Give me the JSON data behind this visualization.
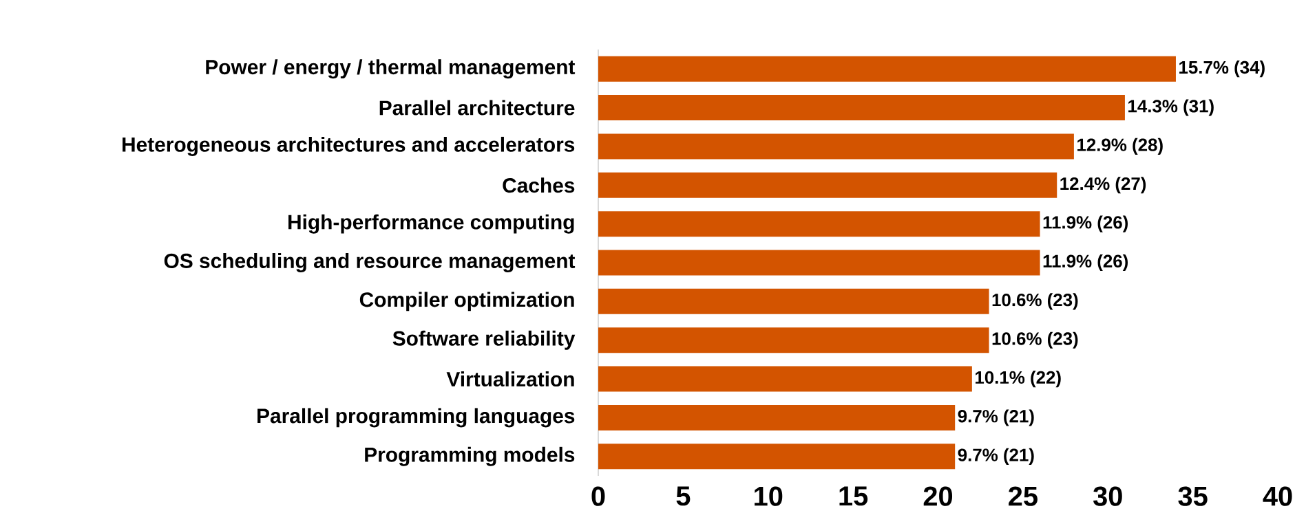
{
  "chart_data": {
    "type": "bar",
    "orientation": "horizontal",
    "categories": [
      "Power / energy / thermal management",
      "Parallel architecture",
      "Heterogeneous architectures and accelerators",
      "Caches",
      "High-performance computing",
      "OS scheduling and resource management",
      "Compiler optimization",
      "Software reliability",
      "Virtualization",
      "Parallel programming languages",
      "Programming models"
    ],
    "values": [
      34,
      31,
      28,
      27,
      26,
      26,
      23,
      23,
      22,
      21,
      21
    ],
    "value_labels": [
      "15.7% (34)",
      "14.3% (31)",
      "12.9% (28)",
      "12.4% (27)",
      "11.9% (26)",
      "11.9% (26)",
      "10.6% (23)",
      "10.6% (23)",
      "10.1% (22)",
      "9.7% (21)",
      "9.7% (21)"
    ],
    "color": "#d35400",
    "xlim": [
      0,
      40
    ],
    "xticks": [
      0,
      5,
      10,
      15,
      20,
      25,
      30,
      35,
      40
    ]
  }
}
